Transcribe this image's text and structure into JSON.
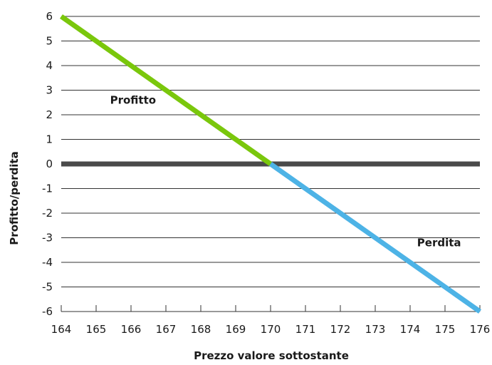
{
  "chart_data": {
    "type": "line",
    "xlabel": "Prezzo valore sottostante",
    "ylabel": "Profitto/perdita",
    "xlim": [
      164,
      176
    ],
    "ylim": [
      -6,
      6
    ],
    "x_ticks": [
      "164",
      "165",
      "166",
      "167",
      "168",
      "169",
      "170",
      "171",
      "172",
      "173",
      "174",
      "175",
      "176"
    ],
    "y_ticks": [
      "6",
      "5",
      "4",
      "3",
      "2",
      "1",
      "0",
      "-1",
      "-2",
      "-3",
      "-4",
      "-5",
      "-6"
    ],
    "grid": true,
    "series": [
      {
        "x": [
          164,
          170
        ],
        "y": [
          6,
          0
        ],
        "color": "#7ac70c"
      },
      {
        "x": [
          170,
          176
        ],
        "y": [
          0,
          -6
        ],
        "color": "#4db3e6"
      }
    ],
    "baseline": {
      "y": 0,
      "color": "#4a4a4a"
    },
    "annotations": [
      {
        "text": "Profitto",
        "x": 165.4,
        "y": 2.45
      },
      {
        "text": "Perdita",
        "x": 174.2,
        "y": -3.35
      }
    ],
    "colors": {
      "grid": "#333333",
      "text": "#1a1a1a"
    }
  }
}
